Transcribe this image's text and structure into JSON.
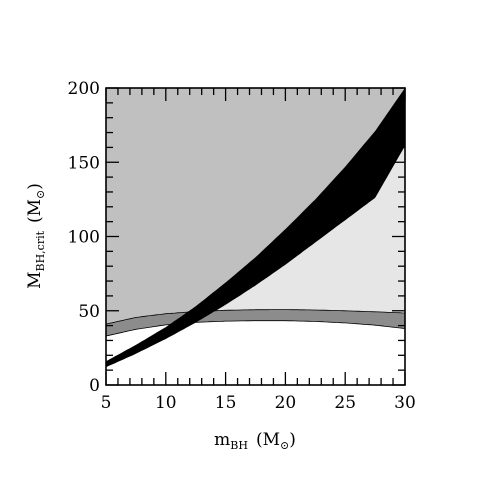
{
  "chart_data": {
    "type": "area",
    "xlabel": {
      "main": "m",
      "sub": "BH",
      "unit": "(M",
      "unit_symbol": "⊙",
      "unit_close": ")"
    },
    "ylabel": {
      "main": "M",
      "sub": "BH,crit",
      "unit": "(M",
      "unit_symbol": "⊙",
      "unit_close": ")"
    },
    "xlim": [
      5,
      30
    ],
    "ylim": [
      0,
      200
    ],
    "x_ticks": [
      5,
      10,
      15,
      20,
      25,
      30
    ],
    "y_ticks": [
      0,
      50,
      100,
      150,
      200
    ],
    "x_tick_labels": [
      "5",
      "10",
      "15",
      "20",
      "25",
      "30"
    ],
    "y_tick_labels": [
      "0",
      "50",
      "100",
      "150",
      "200"
    ],
    "grid": false,
    "colors": {
      "upper_region": "#c0c0c0",
      "middle_region": "#e6e6e6",
      "lower_region": "#ffffff",
      "black_band": "#000000",
      "grey_band": "#8c8c8c"
    },
    "series": [
      {
        "x": [
          5,
          7.5,
          10,
          12.5,
          15,
          17.5,
          20,
          22.5,
          25,
          27.5,
          30
        ],
        "upper": [
          16,
          27,
          39,
          53,
          69,
          86,
          105,
          125,
          147,
          171,
          200
        ],
        "lower": [
          12,
          21,
          31,
          42,
          54,
          67,
          81,
          96,
          111,
          126,
          161
        ]
      },
      {
        "x": [
          5,
          7.5,
          10,
          12.5,
          15,
          17.5,
          20,
          22.5,
          25,
          27.5,
          30
        ],
        "upper": [
          41,
          45.5,
          48,
          49.5,
          50.3,
          50.7,
          50.8,
          50.5,
          50,
          49.3,
          48.5
        ],
        "lower": [
          33,
          37.5,
          40.5,
          42.2,
          43,
          43.3,
          43.3,
          42.8,
          41.8,
          40.3,
          38
        ]
      }
    ]
  }
}
